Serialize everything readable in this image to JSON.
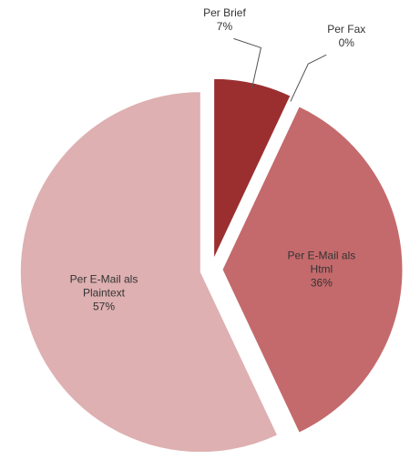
{
  "chart_data": {
    "type": "pie",
    "categories": [
      "Per Brief",
      "Per Fax",
      "Per E-Mail als Html",
      "Per E-Mail als Plaintext"
    ],
    "values": [
      7,
      0,
      36,
      57
    ],
    "value_labels": [
      "7%",
      "0%",
      "36%",
      "57%"
    ],
    "colors": [
      "#9b2f30",
      "#b54a4c",
      "#c46a6c",
      "#deb0b1"
    ]
  }
}
